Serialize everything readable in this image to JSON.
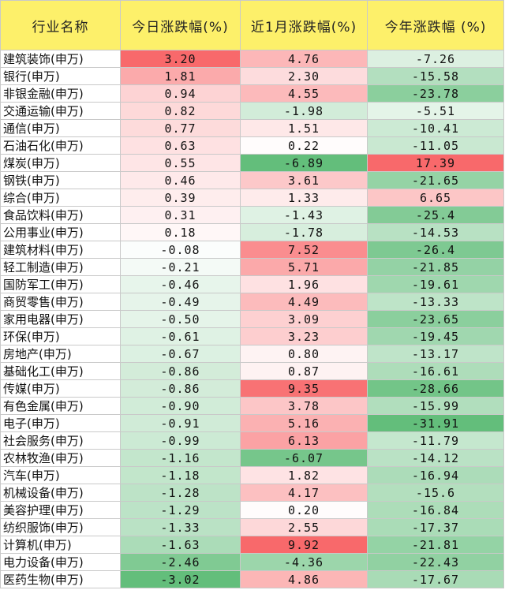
{
  "colors": {
    "header_bg": "#fdf06a",
    "positive_max": "#f8696b",
    "negative_max": "#63be7b",
    "neutral": "#ffffff"
  },
  "table": {
    "headers": [
      "行业名称",
      "今日涨跌幅(%)",
      "近1月涨跌幅(%)",
      "今年涨跌幅 (%)"
    ],
    "rows": [
      [
        "建筑装饰(申万)",
        "3.20",
        "4.76",
        "-7.26"
      ],
      [
        "银行(申万)",
        "1.81",
        "2.30",
        "-15.58"
      ],
      [
        "非银金融(申万)",
        "0.94",
        "4.55",
        "-23.78"
      ],
      [
        "交通运输(申万)",
        "0.82",
        "-1.98",
        "-5.51"
      ],
      [
        "通信(申万)",
        "0.77",
        "1.51",
        "-10.41"
      ],
      [
        "石油石化(申万)",
        "0.63",
        "0.22",
        "-11.05"
      ],
      [
        "煤炭(申万)",
        "0.55",
        "-6.89",
        "17.39"
      ],
      [
        "钢铁(申万)",
        "0.46",
        "3.61",
        "-21.65"
      ],
      [
        "综合(申万)",
        "0.39",
        "1.33",
        "6.65"
      ],
      [
        "食品饮料(申万)",
        "0.31",
        "-1.43",
        "-25.4"
      ],
      [
        "公用事业(申万)",
        "0.18",
        "-1.78",
        "-14.53"
      ],
      [
        "建筑材料(申万)",
        "-0.08",
        "7.52",
        "-26.4"
      ],
      [
        "轻工制造(申万)",
        "-0.21",
        "5.71",
        "-21.85"
      ],
      [
        "国防军工(申万)",
        "-0.46",
        "1.96",
        "-19.61"
      ],
      [
        "商贸零售(申万)",
        "-0.49",
        "4.49",
        "-13.33"
      ],
      [
        "家用电器(申万)",
        "-0.50",
        "3.09",
        "-23.65"
      ],
      [
        "环保(申万)",
        "-0.61",
        "3.23",
        "-19.45"
      ],
      [
        "房地产(申万)",
        "-0.67",
        "0.80",
        "-13.17"
      ],
      [
        "基础化工(申万)",
        "-0.86",
        "0.87",
        "-16.61"
      ],
      [
        "传媒(申万)",
        "-0.86",
        "9.35",
        "-28.66"
      ],
      [
        "有色金属(申万)",
        "-0.90",
        "3.78",
        "-15.99"
      ],
      [
        "电子(申万)",
        "-0.91",
        "5.16",
        "-31.91"
      ],
      [
        "社会服务(申万)",
        "-0.99",
        "6.13",
        "-11.79"
      ],
      [
        "农林牧渔(申万)",
        "-1.16",
        "-6.07",
        "-14.12"
      ],
      [
        "汽车(申万)",
        "-1.18",
        "1.82",
        "-16.94"
      ],
      [
        "机械设备(申万)",
        "-1.28",
        "4.17",
        "-15.6"
      ],
      [
        "美容护理(申万)",
        "-1.29",
        "0.20",
        "-16.84"
      ],
      [
        "纺织服饰(申万)",
        "-1.33",
        "2.55",
        "-17.37"
      ],
      [
        "计算机(申万)",
        "-1.63",
        "9.92",
        "-21.81"
      ],
      [
        "电力设备(申万)",
        "-2.46",
        "-4.36",
        "-22.43"
      ],
      [
        "医药生物(申万)",
        "-3.02",
        "4.86",
        "-17.67"
      ]
    ]
  }
}
